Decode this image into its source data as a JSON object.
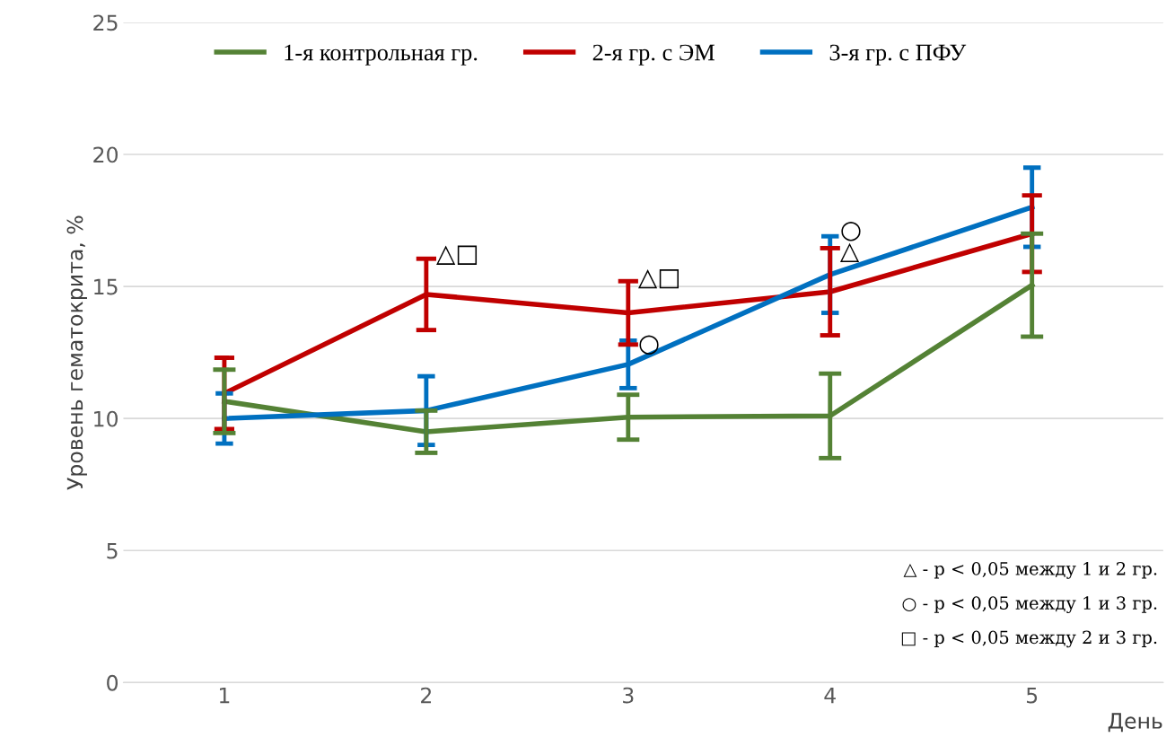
{
  "chart_data": {
    "type": "line",
    "xlabel": "День",
    "ylabel": "Уровень гематокрита, %",
    "categories": [
      "1",
      "2",
      "3",
      "4",
      "5"
    ],
    "series": [
      {
        "name": "1-я контрольная гр.",
        "color": "#548235",
        "values": [
          10.65,
          9.5,
          10.05,
          10.1,
          15.05
        ],
        "errors": [
          1.2,
          0.8,
          0.85,
          1.6,
          1.95
        ]
      },
      {
        "name": "2-я гр. с ЭМ",
        "color": "#c00000",
        "values": [
          10.95,
          14.7,
          14.0,
          14.8,
          17.0
        ],
        "errors": [
          1.35,
          1.35,
          1.2,
          1.65,
          1.45
        ]
      },
      {
        "name": "3-я гр. с ПФУ",
        "color": "#0070c0",
        "values": [
          10.0,
          10.3,
          12.05,
          15.45,
          18.0
        ],
        "errors": [
          0.95,
          1.3,
          0.9,
          1.45,
          1.5
        ]
      }
    ],
    "ylim": [
      0,
      25
    ],
    "yticks": [
      0,
      5,
      10,
      15,
      20,
      25
    ],
    "grid": "y",
    "legend": "top",
    "marker": "none",
    "line_style": "solid",
    "annotations": [
      {
        "text": "△□",
        "x": "2",
        "y": 16.2
      },
      {
        "text": "△□",
        "x": "3",
        "y": 15.3
      },
      {
        "text": "○",
        "x": "3",
        "y": 12.8
      },
      {
        "text": "○",
        "x": "4",
        "y": 17.1
      },
      {
        "text": "△",
        "x": "4",
        "y": 16.3
      },
      "△ - p < 0,05 между 1 и 2 гр.",
      "○ - p < 0,05 между 1 и 3 гр.",
      "□ - p < 0,05 между 2 и 3 гр."
    ]
  }
}
